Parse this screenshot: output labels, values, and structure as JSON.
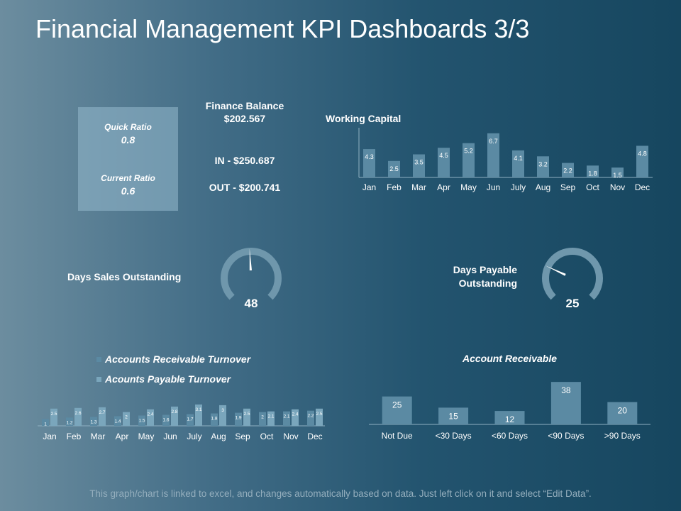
{
  "title": "Financial Management KPI Dashboards 3/3",
  "ratios": {
    "quick_label": "Quick Ratio",
    "quick_value": "0.8",
    "current_label": "Current Ratio",
    "current_value": "0.6"
  },
  "finance": {
    "balance_label": "Finance Balance",
    "balance_value": "$202.567",
    "in_text": "IN - $250.687",
    "out_text": "OUT - $200.741"
  },
  "gauges": {
    "dso_label": "Days Sales Outstanding",
    "dso_value": "48",
    "dpo_label_line1": "Days Payable",
    "dpo_label_line2": "Outstanding",
    "dpo_value": "25"
  },
  "footer": "This graph/chart is linked to excel, and changes automatically based on data. Just left click on it and select “Edit Data”.",
  "colors": {
    "bar": "#5b8aa3",
    "bar_alt": "#7aa6bc",
    "gauge_track": "#6f97ac",
    "needle": "#ffffff"
  },
  "chart_data": [
    {
      "type": "bar",
      "title": "Working Capital",
      "categories": [
        "Jan",
        "Feb",
        "Mar",
        "Apr",
        "May",
        "Jun",
        "July",
        "Aug",
        "Sep",
        "Oct",
        "Nov",
        "Dec"
      ],
      "values": [
        4.3,
        2.5,
        3.5,
        4.5,
        5.2,
        6.7,
        4.1,
        3.2,
        2.2,
        1.8,
        1.5,
        4.8
      ],
      "ylim": [
        0,
        7
      ]
    },
    {
      "type": "bar",
      "title": "",
      "categories": [
        "Jan",
        "Feb",
        "Mar",
        "Apr",
        "May",
        "Jun",
        "July",
        "Aug",
        "Sep",
        "Oct",
        "Nov",
        "Dec"
      ],
      "series": [
        {
          "name": "Accounts Receivable Turnover",
          "values": [
            1,
            1.2,
            1.3,
            1.4,
            1.5,
            1.6,
            1.7,
            1.8,
            1.9,
            2,
            2.1,
            2.2
          ]
        },
        {
          "name": "Acounts Payable Turnover",
          "values": [
            2.5,
            2.6,
            2.7,
            2,
            2.4,
            2.8,
            3.1,
            3,
            2.5,
            2.1,
            2.4,
            2.5
          ]
        }
      ],
      "ylim": [
        0,
        3.3
      ],
      "legend": "top-left"
    },
    {
      "type": "bar",
      "title": "Account Receivable",
      "categories": [
        "Not Due",
        "<30 Days",
        "<60 Days",
        "<90 Days",
        ">90 Days"
      ],
      "values": [
        25,
        15,
        12,
        38,
        20
      ],
      "ylim": [
        0,
        40
      ]
    }
  ]
}
